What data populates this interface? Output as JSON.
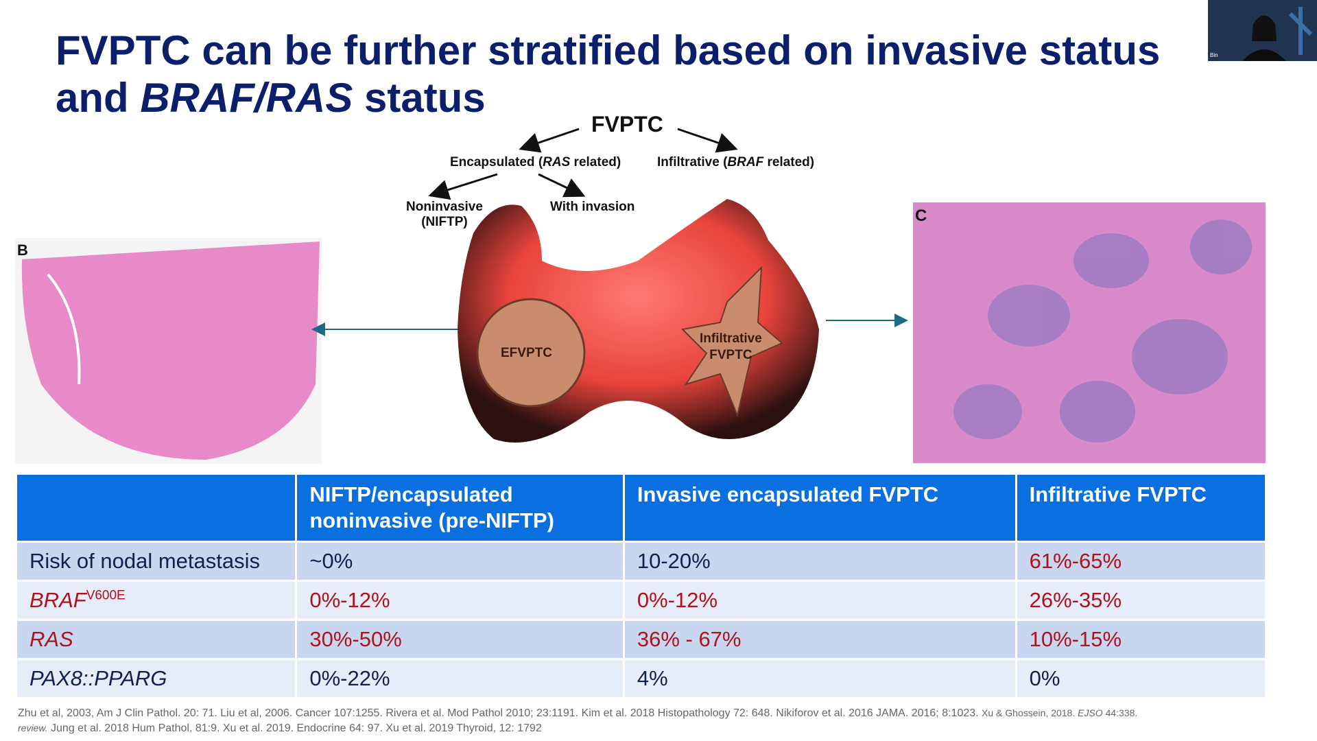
{
  "slide": {
    "title": {
      "line1": "FVPTC can be further stratified based on invasive status",
      "line2": [
        "and ",
        "BRAF/RAS",
        " status"
      ]
    },
    "thumbnail_label": "Bin",
    "diagram": {
      "root": "FVPTC",
      "encapsulated": [
        "Encapsulated (",
        "RAS",
        " related)"
      ],
      "infiltrative": [
        "Infiltrative (",
        "BRAF",
        " related)"
      ],
      "noninvasive": [
        "Noninvasive",
        "(NIFTP)"
      ],
      "with_invasion": "With invasion",
      "circle_label": "EFVPTC",
      "star_label": [
        "Infiltrative",
        "FVPTC"
      ],
      "panel_b": "B",
      "panel_c": "C"
    },
    "table": {
      "header": [
        "NIFTP/encapsulated noninvasive (pre-NIFTP)",
        "Invasive encapsulated FVPTC",
        "Infiltrative FVPTC"
      ],
      "rows": [
        {
          "label": [
            "Risk of nodal metastasis"
          ],
          "cells": [
            "~0%",
            "10-20%",
            "61%-65%"
          ]
        },
        {
          "label": [
            "BRAF",
            "V600E"
          ],
          "cells": [
            "0%-12%",
            "0%-12%",
            "26%-35%"
          ]
        },
        {
          "label": [
            "RAS"
          ],
          "cells": [
            "30%-50%",
            "36% - 67%",
            "10%-15%"
          ]
        },
        {
          "label": [
            "PAX8::PPARG"
          ],
          "cells": [
            "0%-22%",
            "4%",
            "0%"
          ]
        }
      ]
    },
    "references": {
      "line1": [
        "Zhu et al, 2003, Am J Clin Pathol. 20: 71. Liu et al, 2006. Cancer 107:1255. Rivera et al. Mod Pathol 2010; 23:1191. Kim et al. 2018 Histopathology 72: 648. Nikiforov et al. 2016 JAMA. 2016; 8:1023. ",
        "Xu & Ghossein, 2018. ",
        "EJSO",
        " 44:338."
      ],
      "line2": [
        "review.",
        " Jung et al. 2018 Hum Pathol, 81:9. Xu et al. 2019. Endocrine 64: 97. Xu et al. 2019 Thyroid, 12: 1792"
      ]
    }
  }
}
